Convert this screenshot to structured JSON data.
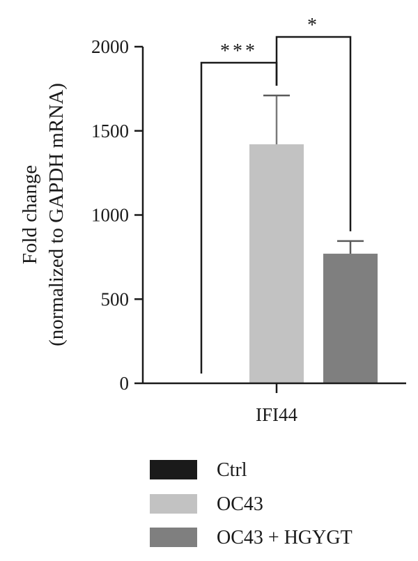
{
  "chart_data": {
    "type": "bar",
    "categories": [
      "IFI44"
    ],
    "ylabel_line1": "Fold change",
    "ylabel_line2": "(normalized to GAPDH mRNA)",
    "ylim": [
      0,
      2000
    ],
    "yticks": [
      0,
      500,
      1000,
      1500,
      2000
    ],
    "ytick_labels": [
      "0",
      "500",
      "1000",
      "1500",
      "2000"
    ],
    "grid": false,
    "legend_position": "bottom",
    "series": [
      {
        "name": "Ctrl",
        "values": [
          1
        ],
        "error": [
          0
        ],
        "color": "#1a1a1a"
      },
      {
        "name": "OC43",
        "values": [
          1420
        ],
        "error": [
          290
        ],
        "color": "#c2c2c2"
      },
      {
        "name": "OC43 + HGYGT",
        "values": [
          770
        ],
        "error": [
          75
        ],
        "color": "#7f7f7f"
      }
    ],
    "significance": [
      {
        "from": "Ctrl",
        "to": "OC43",
        "label": "***"
      },
      {
        "from": "OC43",
        "to": "OC43 + HGYGT",
        "label": "*"
      }
    ]
  }
}
